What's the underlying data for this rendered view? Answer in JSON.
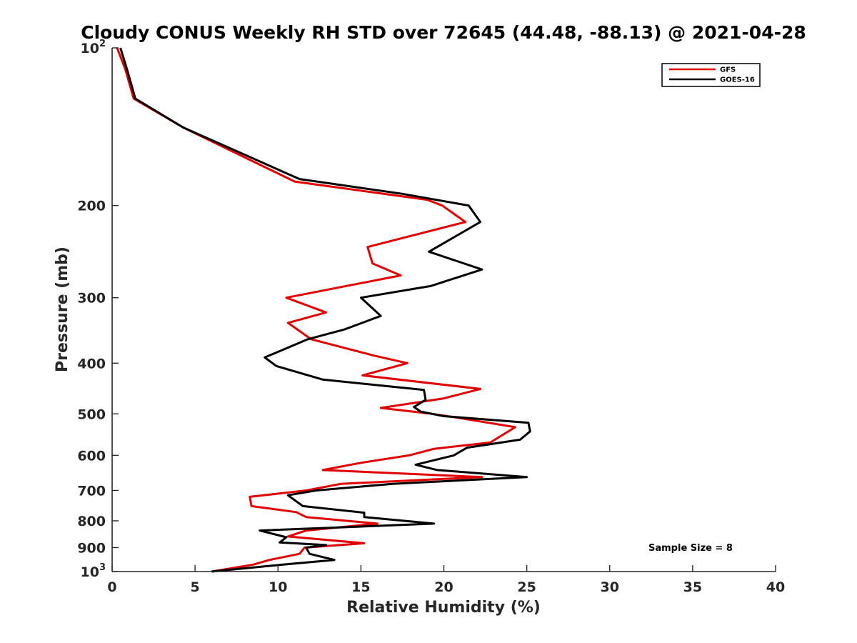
{
  "chart_data": {
    "type": "line",
    "title": "Cloudy CONUS Weekly RH STD over 72645 (44.48, -88.13) @ 2021-04-28",
    "xlabel": "Relative Humidity (%)",
    "ylabel": "Pressure (mb)",
    "xlim": [
      0,
      40
    ],
    "ylim": [
      100,
      1000
    ],
    "y_scale": "log",
    "y_reversed": true,
    "grid": false,
    "legend_position": "top-right",
    "x_ticks": [
      0,
      5,
      10,
      15,
      20,
      25,
      30,
      35,
      40
    ],
    "x_tick_labels": [
      "0",
      "5",
      "10",
      "15",
      "20",
      "25",
      "30",
      "35",
      "40"
    ],
    "y_ticks": [
      100,
      200,
      300,
      400,
      500,
      600,
      700,
      800,
      900,
      1000
    ],
    "y_tick_labels": [
      {
        "base": "10",
        "exp": "2"
      },
      {
        "base": "200",
        "exp": ""
      },
      {
        "base": "300",
        "exp": ""
      },
      {
        "base": "400",
        "exp": ""
      },
      {
        "base": "500",
        "exp": ""
      },
      {
        "base": "600",
        "exp": ""
      },
      {
        "base": "700",
        "exp": ""
      },
      {
        "base": "800",
        "exp": ""
      },
      {
        "base": "900",
        "exp": ""
      },
      {
        "base": "10",
        "exp": "3"
      }
    ],
    "annotation": "Sample Size = 8",
    "series": [
      {
        "name": "GFS",
        "color": "#e00000",
        "points": [
          [
            0.3,
            100
          ],
          [
            0.8,
            110
          ],
          [
            1.3,
            125
          ],
          [
            4.3,
            142
          ],
          [
            11.0,
            180
          ],
          [
            19.0,
            195
          ],
          [
            19.9,
            200
          ],
          [
            21.3,
            215
          ],
          [
            15.4,
            240
          ],
          [
            15.7,
            258
          ],
          [
            17.4,
            272
          ],
          [
            10.5,
            300
          ],
          [
            12.9,
            320
          ],
          [
            10.6,
            335
          ],
          [
            12.0,
            360
          ],
          [
            15.8,
            387
          ],
          [
            17.8,
            400
          ],
          [
            15.1,
            422
          ],
          [
            22.2,
            448
          ],
          [
            20.0,
            467
          ],
          [
            16.2,
            487
          ],
          [
            19.3,
            500
          ],
          [
            20.6,
            507
          ],
          [
            24.3,
            530
          ],
          [
            22.8,
            567
          ],
          [
            19.4,
            583
          ],
          [
            17.9,
            600
          ],
          [
            15.0,
            620
          ],
          [
            12.7,
            640
          ],
          [
            22.3,
            660
          ],
          [
            13.8,
            680
          ],
          [
            11.7,
            700
          ],
          [
            8.3,
            720
          ],
          [
            8.4,
            750
          ],
          [
            11.1,
            770
          ],
          [
            11.7,
            787
          ],
          [
            16.0,
            810
          ],
          [
            11.7,
            835
          ],
          [
            10.6,
            857
          ],
          [
            15.2,
            883
          ],
          [
            11.6,
            900
          ],
          [
            11.3,
            925
          ],
          [
            9.5,
            950
          ],
          [
            8.5,
            970
          ],
          [
            6.0,
            1000
          ]
        ]
      },
      {
        "name": "GOES-16",
        "color": "#000000",
        "points": [
          [
            0.5,
            100
          ],
          [
            0.9,
            110
          ],
          [
            1.4,
            125
          ],
          [
            4.3,
            142
          ],
          [
            11.3,
            178
          ],
          [
            17.5,
            190
          ],
          [
            21.5,
            200
          ],
          [
            22.2,
            215
          ],
          [
            19.1,
            245
          ],
          [
            22.3,
            265
          ],
          [
            19.2,
            285
          ],
          [
            15.0,
            300
          ],
          [
            16.2,
            325
          ],
          [
            14.0,
            345
          ],
          [
            11.8,
            360
          ],
          [
            9.2,
            390
          ],
          [
            9.9,
            405
          ],
          [
            12.7,
            430
          ],
          [
            18.8,
            450
          ],
          [
            18.9,
            470
          ],
          [
            18.2,
            485
          ],
          [
            18.6,
            495
          ],
          [
            20.0,
            505
          ],
          [
            25.1,
            520
          ],
          [
            25.2,
            540
          ],
          [
            24.6,
            560
          ],
          [
            21.4,
            580
          ],
          [
            20.6,
            600
          ],
          [
            18.3,
            625
          ],
          [
            19.6,
            640
          ],
          [
            25.0,
            660
          ],
          [
            16.9,
            680
          ],
          [
            12.3,
            700
          ],
          [
            10.6,
            715
          ],
          [
            11.5,
            750
          ],
          [
            15.2,
            772
          ],
          [
            15.2,
            787
          ],
          [
            19.4,
            810
          ],
          [
            8.9,
            835
          ],
          [
            10.5,
            860
          ],
          [
            10.1,
            880
          ],
          [
            12.9,
            890
          ],
          [
            11.7,
            900
          ],
          [
            11.9,
            925
          ],
          [
            13.4,
            950
          ],
          [
            10.3,
            970
          ],
          [
            6.0,
            1000
          ]
        ]
      }
    ]
  }
}
